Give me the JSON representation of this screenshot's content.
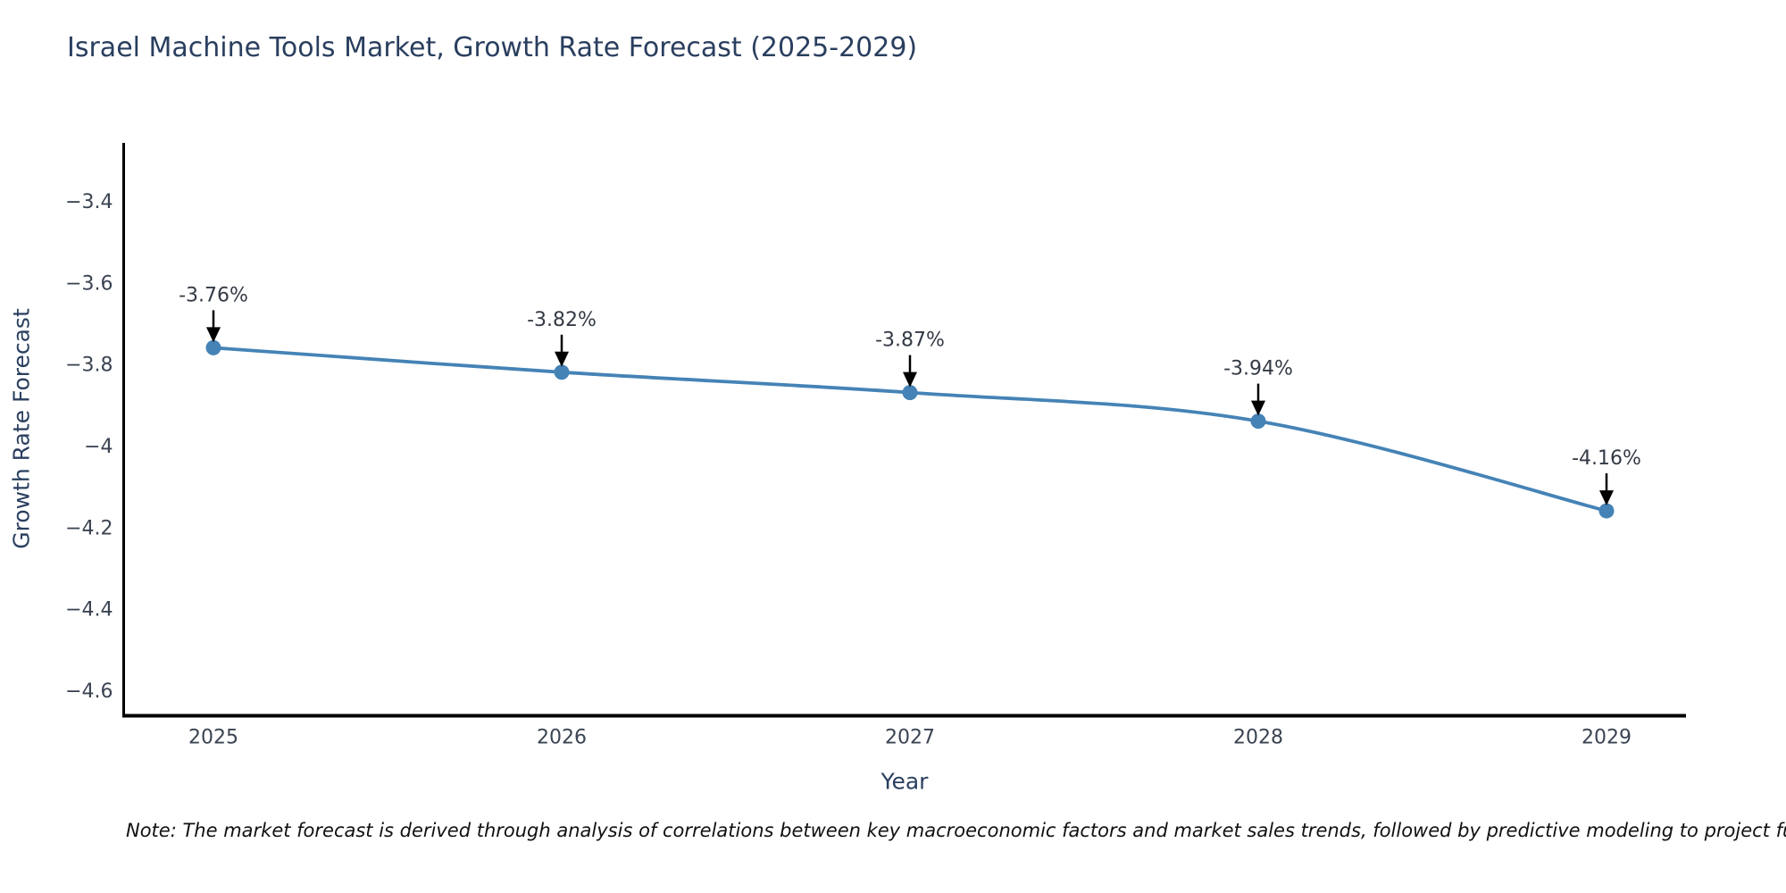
{
  "chart_data": {
    "type": "line",
    "title": "Israel Machine Tools Market, Growth Rate Forecast (2025-2029)",
    "xlabel": "Year",
    "ylabel": "Growth Rate Forecast",
    "x": [
      2025,
      2026,
      2027,
      2028,
      2029
    ],
    "series": [
      {
        "name": "Growth Rate Forecast",
        "values": [
          -3.76,
          -3.82,
          -3.87,
          -3.94,
          -4.16
        ]
      }
    ],
    "point_labels": [
      "-3.76%",
      "-3.82%",
      "-3.87%",
      "-3.94%",
      "-4.16%"
    ],
    "xtick_labels": [
      "2025",
      "2026",
      "2027",
      "2028",
      "2029"
    ],
    "ytick_values": [
      -3.4,
      -3.6,
      -3.8,
      -4,
      -4.2,
      -4.4,
      -4.6
    ],
    "ytick_labels": [
      "−3.4",
      "−3.6",
      "−3.8",
      "−4",
      "−4.2",
      "−4.4",
      "−4.6"
    ],
    "ylim": [
      -4.67,
      -3.26
    ],
    "xlim": [
      2024.74,
      2029.23
    ],
    "grid": false,
    "legend_position": "none",
    "note": "Note: The market forecast is derived through analysis of correlations between key macroeconomic factors and market sales trends, followed by predictive modeling to project future sa",
    "colors": {
      "line": "#4583b6",
      "marker": "#4583b6",
      "axis_line": "#000000",
      "title_text": "#2a3f5f",
      "tick_text": "#3b4452",
      "annotation_text": "#333a45",
      "arrow": "#000000",
      "background": "#ffffff"
    }
  }
}
